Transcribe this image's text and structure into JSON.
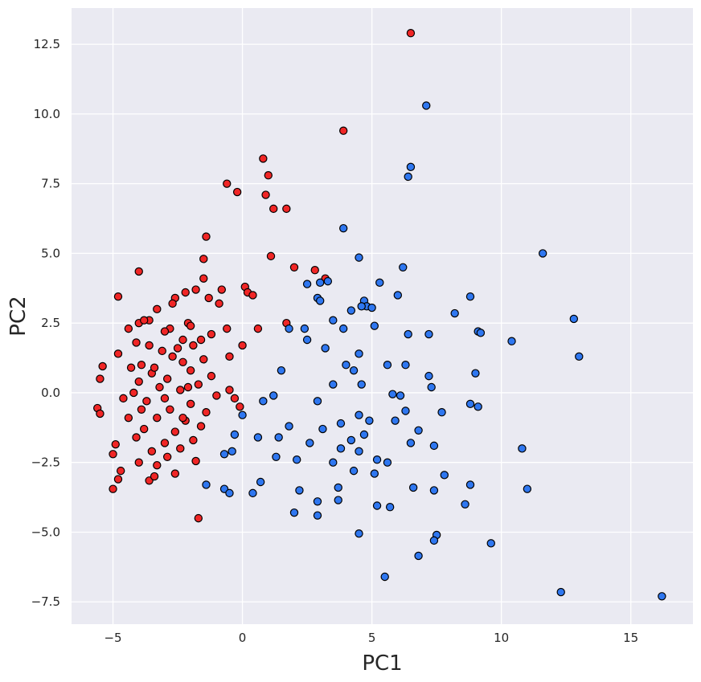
{
  "chart_data": {
    "type": "scatter",
    "title": "",
    "xlabel": "PC1",
    "ylabel": "PC2",
    "xlim": [
      -6.6,
      17.4
    ],
    "ylim": [
      -8.3,
      13.8
    ],
    "x_ticks": [
      -5,
      0,
      5,
      10,
      15
    ],
    "x_tick_labels": [
      "−5",
      "0",
      "5",
      "10",
      "15"
    ],
    "y_ticks": [
      -7.5,
      -5.0,
      -2.5,
      0.0,
      2.5,
      5.0,
      7.5,
      10.0,
      12.5
    ],
    "y_tick_labels": [
      "−7.5",
      "−5.0",
      "−2.5",
      "0.0",
      "2.5",
      "5.0",
      "7.5",
      "10.0",
      "12.5"
    ],
    "grid": true,
    "background_color": "#eaeaf2",
    "grid_color": "#ffffff",
    "series": [
      {
        "color": "#f02626",
        "points": [
          [
            6.5,
            12.9
          ],
          [
            3.9,
            9.4
          ],
          [
            0.8,
            8.4
          ],
          [
            1.0,
            7.8
          ],
          [
            -0.6,
            7.5
          ],
          [
            -0.2,
            7.2
          ],
          [
            0.9,
            7.1
          ],
          [
            1.2,
            6.6
          ],
          [
            1.7,
            6.6
          ],
          [
            -1.4,
            5.6
          ],
          [
            1.1,
            4.9
          ],
          [
            -1.5,
            4.8
          ],
          [
            2.0,
            4.5
          ],
          [
            2.8,
            4.4
          ],
          [
            -4.0,
            4.35
          ],
          [
            -1.5,
            4.1
          ],
          [
            3.2,
            4.1
          ],
          [
            0.1,
            3.8
          ],
          [
            -0.8,
            3.7
          ],
          [
            -1.8,
            3.7
          ],
          [
            0.2,
            3.6
          ],
          [
            -2.2,
            3.6
          ],
          [
            -4.8,
            3.45
          ],
          [
            0.4,
            3.5
          ],
          [
            -2.6,
            3.4
          ],
          [
            -1.3,
            3.4
          ],
          [
            -2.7,
            3.2
          ],
          [
            -0.9,
            3.2
          ],
          [
            -3.3,
            3.0
          ],
          [
            -3.6,
            2.6
          ],
          [
            -4.0,
            2.5
          ],
          [
            -3.8,
            2.6
          ],
          [
            -4.4,
            2.3
          ],
          [
            -2.1,
            2.5
          ],
          [
            -2.0,
            2.4
          ],
          [
            -2.8,
            2.3
          ],
          [
            0.6,
            2.3
          ],
          [
            1.7,
            2.5
          ],
          [
            -0.6,
            2.3
          ],
          [
            -1.2,
            2.1
          ],
          [
            -3.0,
            2.2
          ],
          [
            -2.3,
            1.9
          ],
          [
            -1.6,
            1.9
          ],
          [
            -4.1,
            1.8
          ],
          [
            -3.6,
            1.7
          ],
          [
            -2.5,
            1.6
          ],
          [
            -1.9,
            1.7
          ],
          [
            -3.1,
            1.5
          ],
          [
            -4.8,
            1.4
          ],
          [
            -1.5,
            1.2
          ],
          [
            -2.3,
            1.1
          ],
          [
            -3.9,
            1.0
          ],
          [
            -4.3,
            0.9
          ],
          [
            -2.0,
            0.8
          ],
          [
            -3.5,
            0.7
          ],
          [
            -5.4,
            0.95
          ],
          [
            -1.2,
            0.6
          ],
          [
            -2.9,
            0.5
          ],
          [
            -4.0,
            0.4
          ],
          [
            -5.5,
            0.5
          ],
          [
            -1.7,
            0.3
          ],
          [
            -3.2,
            0.2
          ],
          [
            -2.4,
            0.1
          ],
          [
            -4.2,
            0.0
          ],
          [
            -0.5,
            0.1
          ],
          [
            -1.0,
            -0.1
          ],
          [
            -3.7,
            -0.3
          ],
          [
            -2.0,
            -0.4
          ],
          [
            -4.6,
            -0.2
          ],
          [
            -2.8,
            -0.6
          ],
          [
            -1.4,
            -0.7
          ],
          [
            -5.6,
            -0.55
          ],
          [
            -5.5,
            -0.75
          ],
          [
            -3.3,
            -0.9
          ],
          [
            -4.4,
            -0.9
          ],
          [
            -2.2,
            -1.0
          ],
          [
            -1.6,
            -1.2
          ],
          [
            -3.8,
            -1.3
          ],
          [
            -2.6,
            -1.4
          ],
          [
            -4.1,
            -1.6
          ],
          [
            -1.9,
            -1.7
          ],
          [
            -3.0,
            -1.8
          ],
          [
            -4.9,
            -1.85
          ],
          [
            -2.4,
            -2.0
          ],
          [
            -3.5,
            -2.1
          ],
          [
            -5.0,
            -2.2
          ],
          [
            -2.9,
            -2.3
          ],
          [
            -4.0,
            -2.5
          ],
          [
            -1.8,
            -2.45
          ],
          [
            -3.3,
            -2.6
          ],
          [
            -4.7,
            -2.8
          ],
          [
            -2.6,
            -2.9
          ],
          [
            -3.6,
            -3.15
          ],
          [
            -4.8,
            -3.1
          ],
          [
            -5.0,
            -3.45
          ],
          [
            -3.4,
            -3.0
          ],
          [
            -1.7,
            -4.5
          ],
          [
            -0.3,
            -0.2
          ],
          [
            -0.1,
            -0.5
          ],
          [
            0.0,
            1.7
          ],
          [
            -0.5,
            1.3
          ],
          [
            -3.4,
            0.9
          ],
          [
            -2.7,
            1.3
          ],
          [
            -2.1,
            0.2
          ],
          [
            -3.0,
            -0.2
          ],
          [
            -3.9,
            -0.6
          ],
          [
            -2.3,
            -0.9
          ]
        ]
      },
      {
        "color": "#2f77f0",
        "points": [
          [
            7.1,
            10.3
          ],
          [
            6.5,
            8.1
          ],
          [
            6.4,
            7.75
          ],
          [
            3.9,
            5.9
          ],
          [
            11.6,
            5.0
          ],
          [
            4.5,
            4.85
          ],
          [
            6.2,
            4.5
          ],
          [
            2.5,
            3.9
          ],
          [
            3.0,
            3.95
          ],
          [
            3.3,
            4.0
          ],
          [
            5.3,
            3.95
          ],
          [
            6.0,
            3.5
          ],
          [
            2.9,
            3.4
          ],
          [
            3.0,
            3.3
          ],
          [
            4.7,
            3.3
          ],
          [
            4.8,
            3.1
          ],
          [
            8.8,
            3.45
          ],
          [
            4.2,
            2.95
          ],
          [
            4.6,
            3.1
          ],
          [
            5.0,
            3.05
          ],
          [
            8.2,
            2.85
          ],
          [
            12.8,
            2.65
          ],
          [
            3.5,
            2.6
          ],
          [
            1.8,
            2.3
          ],
          [
            2.4,
            2.3
          ],
          [
            3.9,
            2.3
          ],
          [
            5.1,
            2.4
          ],
          [
            9.1,
            2.2
          ],
          [
            9.2,
            2.15
          ],
          [
            6.4,
            2.1
          ],
          [
            7.2,
            2.1
          ],
          [
            2.5,
            1.9
          ],
          [
            10.4,
            1.85
          ],
          [
            3.2,
            1.6
          ],
          [
            4.5,
            1.4
          ],
          [
            13.0,
            1.3
          ],
          [
            4.0,
            1.0
          ],
          [
            5.6,
            1.0
          ],
          [
            6.3,
            1.0
          ],
          [
            4.3,
            0.8
          ],
          [
            9.0,
            0.7
          ],
          [
            7.2,
            0.6
          ],
          [
            3.5,
            0.3
          ],
          [
            4.6,
            0.3
          ],
          [
            7.3,
            0.2
          ],
          [
            1.2,
            -0.1
          ],
          [
            2.9,
            -0.3
          ],
          [
            5.8,
            -0.05
          ],
          [
            6.1,
            -0.1
          ],
          [
            8.8,
            -0.4
          ],
          [
            9.1,
            -0.5
          ],
          [
            4.5,
            -0.8
          ],
          [
            6.3,
            -0.65
          ],
          [
            7.7,
            -0.7
          ],
          [
            1.8,
            -1.2
          ],
          [
            3.8,
            -1.1
          ],
          [
            4.9,
            -1.0
          ],
          [
            5.9,
            -1.0
          ],
          [
            3.1,
            -1.3
          ],
          [
            4.7,
            -1.5
          ],
          [
            6.8,
            -1.35
          ],
          [
            1.4,
            -1.6
          ],
          [
            2.6,
            -1.8
          ],
          [
            4.2,
            -1.7
          ],
          [
            6.5,
            -1.8
          ],
          [
            0.6,
            -1.6
          ],
          [
            3.8,
            -2.0
          ],
          [
            4.5,
            -2.1
          ],
          [
            7.4,
            -1.9
          ],
          [
            10.8,
            -2.0
          ],
          [
            1.3,
            -2.3
          ],
          [
            2.1,
            -2.4
          ],
          [
            3.5,
            -2.5
          ],
          [
            5.2,
            -2.4
          ],
          [
            5.6,
            -2.5
          ],
          [
            4.3,
            -2.8
          ],
          [
            5.1,
            -2.9
          ],
          [
            7.8,
            -2.95
          ],
          [
            0.7,
            -3.2
          ],
          [
            2.2,
            -3.5
          ],
          [
            3.7,
            -3.4
          ],
          [
            6.6,
            -3.4
          ],
          [
            7.4,
            -3.5
          ],
          [
            8.8,
            -3.3
          ],
          [
            11.0,
            -3.45
          ],
          [
            0.4,
            -3.6
          ],
          [
            2.9,
            -3.9
          ],
          [
            3.7,
            -3.85
          ],
          [
            5.2,
            -4.05
          ],
          [
            5.7,
            -4.1
          ],
          [
            8.6,
            -4.0
          ],
          [
            2.0,
            -4.3
          ],
          [
            2.9,
            -4.4
          ],
          [
            4.5,
            -5.05
          ],
          [
            7.5,
            -5.1
          ],
          [
            7.4,
            -5.3
          ],
          [
            9.6,
            -5.4
          ],
          [
            6.8,
            -5.85
          ],
          [
            5.5,
            -6.6
          ],
          [
            12.3,
            -7.15
          ],
          [
            16.2,
            -7.3
          ],
          [
            -1.4,
            -3.3
          ],
          [
            -0.7,
            -3.45
          ],
          [
            -0.5,
            -3.6
          ],
          [
            -0.7,
            -2.2
          ],
          [
            -0.4,
            -2.1
          ],
          [
            -0.3,
            -1.5
          ],
          [
            0.0,
            -0.8
          ],
          [
            0.8,
            -0.3
          ],
          [
            1.5,
            0.8
          ]
        ]
      }
    ]
  }
}
